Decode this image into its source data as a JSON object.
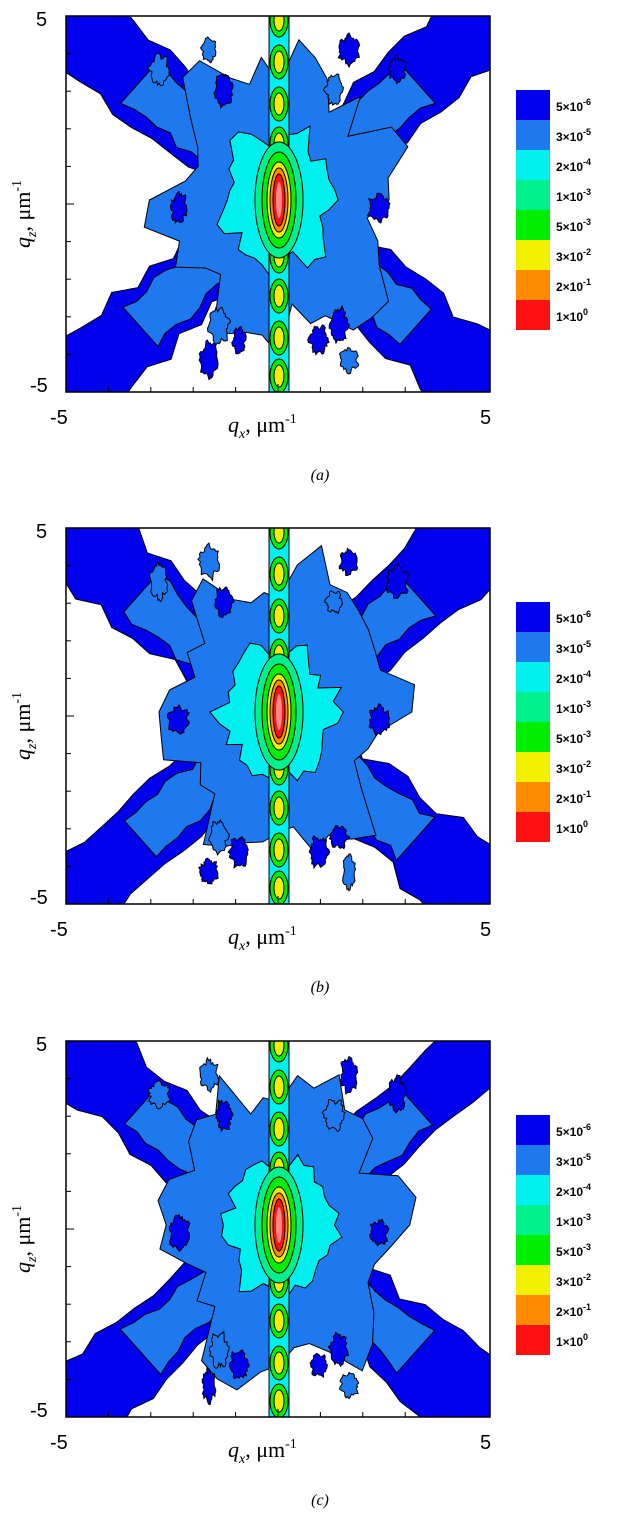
{
  "legend": {
    "levels": [
      {
        "label": "5×10⁻⁶",
        "mant": "5",
        "exp": "-6",
        "color": "#0000ee"
      },
      {
        "label": "3×10⁻⁵",
        "mant": "3",
        "exp": "-5",
        "color": "#1e78ee"
      },
      {
        "label": "2×10⁻⁴",
        "mant": "2",
        "exp": "-4",
        "color": "#00f0f0"
      },
      {
        "label": "1×10⁻³",
        "mant": "1",
        "exp": "-3",
        "color": "#00f08c"
      },
      {
        "label": "5×10⁻³",
        "mant": "5",
        "exp": "-3",
        "color": "#00ee00"
      },
      {
        "label": "3×10⁻²",
        "mant": "3",
        "exp": "-2",
        "color": "#f0f000"
      },
      {
        "label": "2×10⁻¹",
        "mant": "2",
        "exp": "-1",
        "color": "#ff8a00"
      },
      {
        "label": "1×10⁰",
        "mant": "1",
        "exp": "0",
        "color": "#ff1010"
      }
    ]
  },
  "axes": {
    "x_symbol": "q",
    "x_sub": "x",
    "y_symbol": "q",
    "y_sub": "z",
    "unit": "μm",
    "unit_exp": "-1",
    "x_ticks": [
      "-5",
      "5"
    ],
    "y_ticks": [
      "5",
      "-5"
    ]
  },
  "chart_data": [
    {
      "type": "heatmap",
      "caption": "(a)",
      "xlim": [
        -5,
        5
      ],
      "ylim": [
        -5,
        5
      ],
      "xlabel": "qx, μm-1",
      "ylabel": "qz, μm-1",
      "legend_levels": [
        "5×10^-6",
        "3×10^-5",
        "2×10^-4",
        "1×10^-3",
        "5×10^-3",
        "3×10^-2",
        "2×10^-1",
        "1×10^0"
      ]
    },
    {
      "type": "heatmap",
      "caption": "(b)",
      "xlim": [
        -5,
        5
      ],
      "ylim": [
        -5,
        5
      ],
      "xlabel": "qx, μm-1",
      "ylabel": "qz, μm-1",
      "legend_levels": [
        "5×10^-6",
        "3×10^-5",
        "2×10^-4",
        "1×10^-3",
        "5×10^-3",
        "3×10^-2",
        "2×10^-1",
        "1×10^0"
      ]
    },
    {
      "type": "heatmap",
      "caption": "(c)",
      "xlim": [
        -5,
        5
      ],
      "ylim": [
        -5,
        5
      ],
      "xlabel": "qx, μm-1",
      "ylabel": "qz, μm-1",
      "legend_levels": [
        "5×10^-6",
        "3×10^-5",
        "2×10^-4",
        "1×10^-3",
        "5×10^-3",
        "3×10^-2",
        "2×10^-1",
        "1×10^0"
      ]
    }
  ],
  "captions": [
    "(a)",
    "(b)",
    "(c)"
  ]
}
